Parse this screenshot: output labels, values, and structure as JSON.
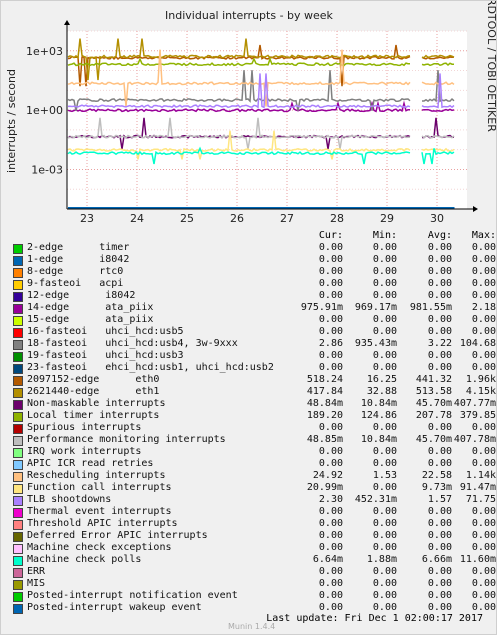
{
  "chart_data": {
    "type": "line",
    "title": "Individual interrupts - by week",
    "ylabel": "interrupts / second",
    "y_scale": "log",
    "ylim": [
      1e-05,
      10000
    ],
    "y_ticks": [
      "1e+03",
      "1e+00",
      "1e-03"
    ],
    "x_ticks": [
      "23",
      "24",
      "25",
      "26",
      "27",
      "28",
      "29",
      "30"
    ],
    "side_label": "RRDTOOL / TOBI OETIKER",
    "grid": true,
    "column_headers": [
      "Cur:",
      "Min:",
      "Avg:",
      "Max:"
    ],
    "series": [
      {
        "name": "2-edge      timer",
        "color": "#00cc00",
        "cur": "0.00",
        "min": "0.00",
        "avg": "0.00",
        "max": "0.00"
      },
      {
        "name": "1-edge      i8042",
        "color": "#0066b3",
        "cur": "0.00",
        "min": "0.00",
        "avg": "0.00",
        "max": "0.00"
      },
      {
        "name": "8-edge      rtc0",
        "color": "#ff8000",
        "cur": "0.00",
        "min": "0.00",
        "avg": "0.00",
        "max": "0.00"
      },
      {
        "name": "9-fasteoi   acpi",
        "color": "#ffcc00",
        "cur": "0.00",
        "min": "0.00",
        "avg": "0.00",
        "max": "0.00"
      },
      {
        "name": "12-edge      i8042",
        "color": "#330099",
        "cur": "0.00",
        "min": "0.00",
        "avg": "0.00",
        "max": "0.00"
      },
      {
        "name": "14-edge      ata_piix",
        "color": "#990099",
        "cur": "975.91m",
        "min": "969.17m",
        "avg": "981.55m",
        "max": "2.18"
      },
      {
        "name": "15-edge      ata_piix",
        "color": "#ccff00",
        "cur": "0.00",
        "min": "0.00",
        "avg": "0.00",
        "max": "0.00"
      },
      {
        "name": "16-fasteoi   uhci_hcd:usb5",
        "color": "#ff0000",
        "cur": "0.00",
        "min": "0.00",
        "avg": "0.00",
        "max": "0.00"
      },
      {
        "name": "18-fasteoi   uhci_hcd:usb4, 3w-9xxx",
        "color": "#808080",
        "cur": "2.86",
        "min": "935.43m",
        "avg": "3.22",
        "max": "104.68"
      },
      {
        "name": "19-fasteoi   uhci_hcd:usb3",
        "color": "#008f00",
        "cur": "0.00",
        "min": "0.00",
        "avg": "0.00",
        "max": "0.00"
      },
      {
        "name": "23-fasteoi   ehci_hcd:usb1, uhci_hcd:usb2",
        "color": "#00487d",
        "cur": "0.00",
        "min": "0.00",
        "avg": "0.00",
        "max": "0.00"
      },
      {
        "name": "2097152-edge      eth0",
        "color": "#b35a00",
        "cur": "518.24",
        "min": "16.25",
        "avg": "441.32",
        "max": "1.96k"
      },
      {
        "name": "2621440-edge      eth1",
        "color": "#b38f00",
        "cur": "417.84",
        "min": "32.88",
        "avg": "513.58",
        "max": "4.15k"
      },
      {
        "name": "Non-maskable interrupts",
        "color": "#6b006b",
        "cur": "48.84m",
        "min": "10.84m",
        "avg": "45.70m",
        "max": "407.77m"
      },
      {
        "name": "Local timer interrupts",
        "color": "#8fb300",
        "cur": "189.20",
        "min": "124.86",
        "avg": "207.78",
        "max": "379.85"
      },
      {
        "name": "Spurious interrupts",
        "color": "#b30000",
        "cur": "0.00",
        "min": "0.00",
        "avg": "0.00",
        "max": "0.00"
      },
      {
        "name": "Performance monitoring interrupts",
        "color": "#bebebe",
        "cur": "48.85m",
        "min": "10.84m",
        "avg": "45.70m",
        "max": "407.78m"
      },
      {
        "name": "IRQ work interrupts",
        "color": "#80ff80",
        "cur": "0.00",
        "min": "0.00",
        "avg": "0.00",
        "max": "0.00"
      },
      {
        "name": "APIC ICR read retries",
        "color": "#80c9ff",
        "cur": "0.00",
        "min": "0.00",
        "avg": "0.00",
        "max": "0.00"
      },
      {
        "name": "Rescheduling interrupts",
        "color": "#ffc080",
        "cur": "24.92",
        "min": "1.53",
        "avg": "22.58",
        "max": "1.14k"
      },
      {
        "name": "Function call interrupts",
        "color": "#ffe680",
        "cur": "20.99m",
        "min": "0.00",
        "avg": "9.73m",
        "max": "91.47m"
      },
      {
        "name": "TLB shootdowns",
        "color": "#aa80ff",
        "cur": "2.30",
        "min": "452.31m",
        "avg": "1.57",
        "max": "71.75"
      },
      {
        "name": "Thermal event interrupts",
        "color": "#ee00cc",
        "cur": "0.00",
        "min": "0.00",
        "avg": "0.00",
        "max": "0.00"
      },
      {
        "name": "Threshold APIC interrupts",
        "color": "#ff8080",
        "cur": "0.00",
        "min": "0.00",
        "avg": "0.00",
        "max": "0.00"
      },
      {
        "name": "Deferred Error APIC interrupts",
        "color": "#666600",
        "cur": "0.00",
        "min": "0.00",
        "avg": "0.00",
        "max": "0.00"
      },
      {
        "name": "Machine check exceptions",
        "color": "#ffbfff",
        "cur": "0.00",
        "min": "0.00",
        "avg": "0.00",
        "max": "0.00"
      },
      {
        "name": "Machine check polls",
        "color": "#00ffcc",
        "cur": "6.64m",
        "min": "1.88m",
        "avg": "6.66m",
        "max": "11.60m"
      },
      {
        "name": "ERR",
        "color": "#cc6699",
        "cur": "0.00",
        "min": "0.00",
        "avg": "0.00",
        "max": "0.00"
      },
      {
        "name": "MIS",
        "color": "#999900",
        "cur": "0.00",
        "min": "0.00",
        "avg": "0.00",
        "max": "0.00"
      },
      {
        "name": "Posted-interrupt notification event",
        "color": "#00cc00",
        "cur": "0.00",
        "min": "0.00",
        "avg": "0.00",
        "max": "0.00"
      },
      {
        "name": "Posted-interrupt wakeup event",
        "color": "#0066b3",
        "cur": "0.00",
        "min": "0.00",
        "avg": "0.00",
        "max": "0.00"
      }
    ]
  },
  "footer": {
    "last_update": "Last update:  Fri Dec  1 02:00:17 2017",
    "version": "Munin 1.4.4"
  }
}
